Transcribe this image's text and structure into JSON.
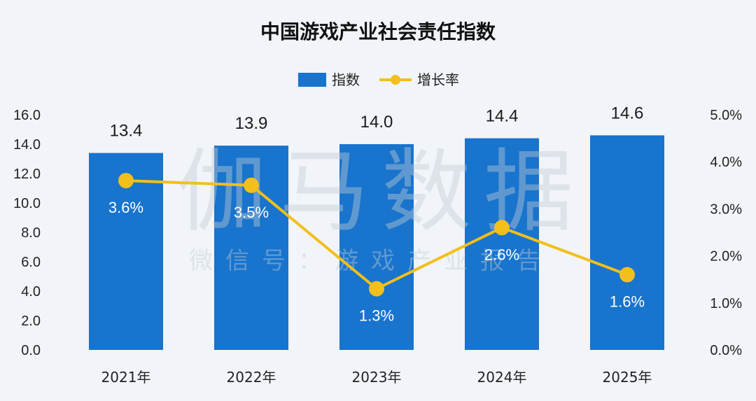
{
  "colors": {
    "background": "#f1f4f8",
    "bar": "#1874cd",
    "line": "#f3bf1b",
    "text": "#222222"
  },
  "chart_data": {
    "type": "bar",
    "title": "中国游戏产业社会责任指数",
    "categories": [
      "2021年",
      "2022年",
      "2023年",
      "2024年",
      "2025年"
    ],
    "series": [
      {
        "name": "指数",
        "type": "bar",
        "axis": "left",
        "values": [
          13.4,
          13.9,
          14.0,
          14.4,
          14.6
        ],
        "labels": [
          "13.4",
          "13.9",
          "14.0",
          "14.4",
          "14.6"
        ]
      },
      {
        "name": "增长率",
        "type": "line",
        "axis": "right",
        "values": [
          3.6,
          3.5,
          1.3,
          2.6,
          1.6
        ],
        "labels": [
          "3.6%",
          "3.5%",
          "1.3%",
          "2.6%",
          "1.6%"
        ]
      }
    ],
    "y_left": {
      "min": 0,
      "max": 16,
      "ticks": [
        "0.0",
        "2.0",
        "4.0",
        "6.0",
        "8.0",
        "10.0",
        "12.0",
        "14.0",
        "16.0"
      ]
    },
    "y_right": {
      "min": 0,
      "max": 5,
      "ticks": [
        "0.0%",
        "1.0%",
        "2.0%",
        "3.0%",
        "4.0%",
        "5.0%"
      ]
    },
    "grid": false,
    "legend": "top-center",
    "watermark": [
      "伽马数据",
      "微信号：游戏产业报告"
    ]
  }
}
